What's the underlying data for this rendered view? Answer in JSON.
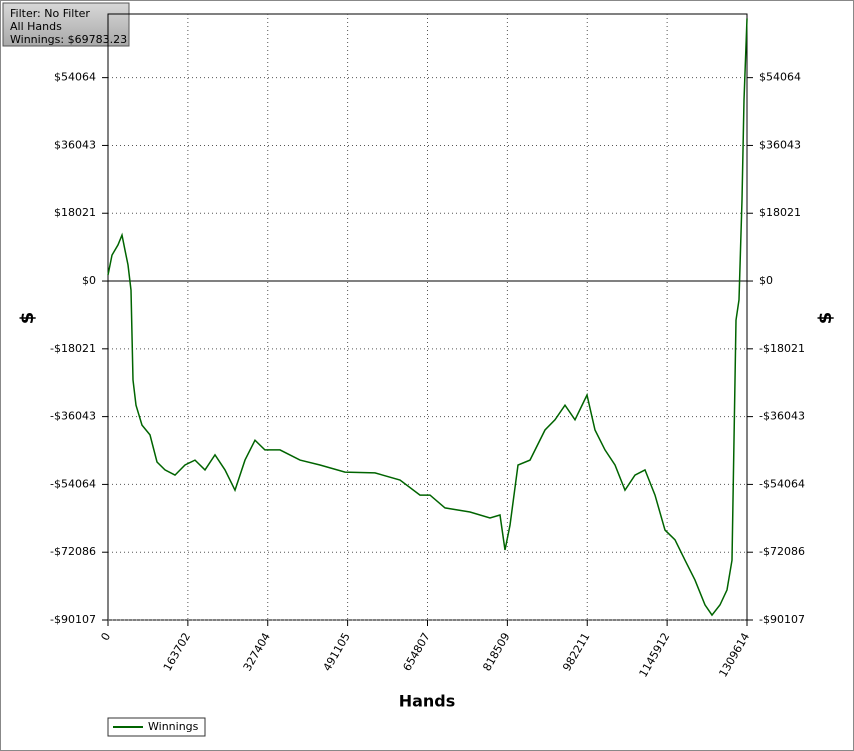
{
  "chart_data": {
    "type": "line",
    "info": [
      "Filter: No Filter",
      "All Hands",
      "Winnings: $69783.23"
    ],
    "xlabel": "Hands",
    "ylabel": "$",
    "x": [
      0,
      8197,
      20500,
      28700,
      34800,
      41000,
      47100,
      51200,
      57400,
      69700,
      86100,
      100400,
      116800,
      137300,
      157800,
      178300,
      198700,
      219300,
      239700,
      260200,
      280700,
      301300,
      321600,
      352500,
      393500,
      434500,
      485700,
      547200,
      598500,
      639400,
      660000,
      690700,
      741900,
      782900,
      803400,
      813600,
      823900,
      840300,
      864900,
      895600,
      916100,
      936600,
      957100,
      981700,
      998100,
      1018600,
      1039100,
      1059600,
      1080100,
      1100600,
      1121100,
      1141600,
      1162100,
      1182600,
      1203000,
      1223500,
      1237900,
      1254300,
      1268600,
      1278900,
      1287100,
      1293200,
      1299300,
      1303400,
      1309614
    ],
    "series": [
      {
        "name": "Winnings",
        "color": "#006400",
        "values": [
          1600,
          6900,
          9600,
          12200,
          8200,
          4300,
          -2400,
          -26300,
          -33000,
          -38300,
          -40900,
          -48100,
          -50200,
          -51600,
          -48900,
          -47600,
          -50200,
          -46200,
          -50200,
          -55600,
          -47600,
          -42300,
          -44900,
          -44900,
          -47600,
          -48900,
          -50800,
          -51000,
          -52900,
          -56900,
          -56900,
          -60300,
          -61400,
          -63000,
          -62200,
          -71500,
          -64900,
          -48900,
          -47600,
          -39600,
          -36900,
          -33000,
          -36900,
          -30300,
          -39600,
          -44900,
          -48900,
          -55600,
          -51600,
          -50200,
          -56900,
          -66200,
          -68800,
          -74200,
          -79500,
          -86100,
          -88800,
          -86100,
          -82100,
          -74200,
          -10400,
          -5000,
          21500,
          48100,
          69783
        ]
      }
    ],
    "xlim": [
      0,
      1309614
    ],
    "xticks": [
      0,
      163702,
      327404,
      491105,
      654807,
      818509,
      982211,
      1145912,
      1309614
    ],
    "ylim": [
      -90107,
      70983
    ],
    "yticks": [
      {
        "value": -90107,
        "label": "-$90107"
      },
      {
        "value": -72086,
        "label": "-$72086"
      },
      {
        "value": -54064,
        "label": "-$54064"
      },
      {
        "value": -36043,
        "label": "-$36043"
      },
      {
        "value": -18021,
        "label": "-$18021"
      },
      {
        "value": 0,
        "label": "$0"
      },
      {
        "value": 18021,
        "label": "$18021"
      },
      {
        "value": 36043,
        "label": "$36043"
      },
      {
        "value": 54064,
        "label": "$54064"
      }
    ],
    "grid": true
  }
}
